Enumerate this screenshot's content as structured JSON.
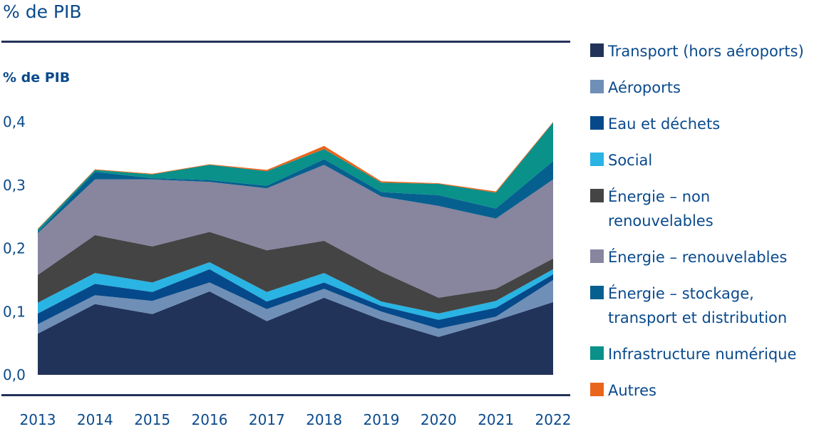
{
  "header": {
    "title": "% de PIB"
  },
  "chart_data": {
    "type": "area",
    "stacked": true,
    "title": "% de PIB",
    "ylabel": "% de PIB",
    "xlabel": "",
    "ylim": [
      0,
      0.4
    ],
    "yticks": [
      0.0,
      0.1,
      0.2,
      0.3,
      0.4
    ],
    "ytick_labels": [
      "0,0",
      "0,1",
      "0,2",
      "0,3",
      "0,4"
    ],
    "categories": [
      "2013",
      "2014",
      "2015",
      "2016",
      "2017",
      "2018",
      "2019",
      "2020",
      "2021",
      "2022"
    ],
    "grid": false,
    "legend_position": "right",
    "series": [
      {
        "name": "Transport (hors aéroports)",
        "color": "#22335a",
        "values": [
          0.065,
          0.112,
          0.096,
          0.132,
          0.085,
          0.122,
          0.087,
          0.06,
          0.086,
          0.115
        ]
      },
      {
        "name": "Aéroports",
        "color": "#6f8fb6",
        "values": [
          0.015,
          0.014,
          0.021,
          0.014,
          0.019,
          0.014,
          0.013,
          0.013,
          0.006,
          0.035
        ]
      },
      {
        "name": "Eau et déchets",
        "color": "#06498a",
        "values": [
          0.017,
          0.018,
          0.014,
          0.021,
          0.012,
          0.01,
          0.009,
          0.014,
          0.014,
          0.009
        ]
      },
      {
        "name": "Social",
        "color": "#29b4e3",
        "values": [
          0.017,
          0.017,
          0.015,
          0.011,
          0.015,
          0.015,
          0.007,
          0.01,
          0.011,
          0.008
        ]
      },
      {
        "name": "Énergie – non\nrenouvelables",
        "color": "#444444",
        "values": [
          0.044,
          0.06,
          0.057,
          0.048,
          0.066,
          0.051,
          0.047,
          0.025,
          0.019,
          0.017
        ]
      },
      {
        "name": "Énergie – renouvelables",
        "color": "#88859f",
        "values": [
          0.066,
          0.088,
          0.106,
          0.079,
          0.098,
          0.12,
          0.119,
          0.145,
          0.111,
          0.125
        ]
      },
      {
        "name": "Énergie – stockage,\ntransport et distribution",
        "color": "#05608f",
        "values": [
          0.002,
          0.012,
          0.002,
          0.003,
          0.004,
          0.009,
          0.007,
          0.017,
          0.016,
          0.029
        ]
      },
      {
        "name": "Infrastructure numérique",
        "color": "#09918a",
        "values": [
          0.004,
          0.003,
          0.006,
          0.024,
          0.023,
          0.016,
          0.015,
          0.018,
          0.025,
          0.061
        ]
      },
      {
        "name": "Autres",
        "color": "#ea651c",
        "values": [
          0.001,
          0.001,
          0.001,
          0.001,
          0.002,
          0.005,
          0.002,
          0.001,
          0.002,
          0.001
        ]
      }
    ]
  }
}
